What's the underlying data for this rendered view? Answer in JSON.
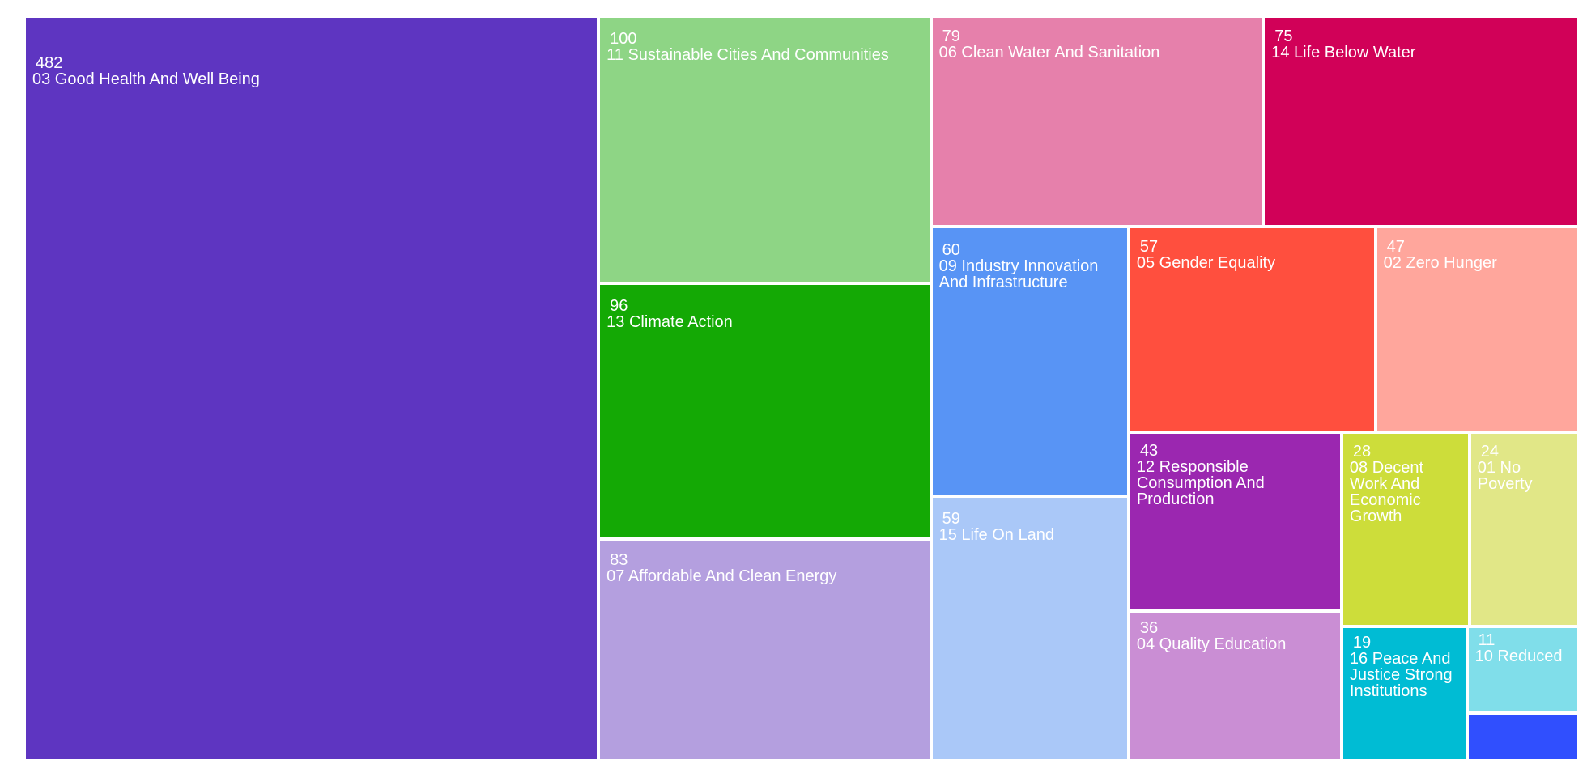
{
  "chart_data": {
    "type": "treemap",
    "categories": [
      "03 Good Health And Well Being",
      "11 Sustainable Cities And Communities",
      "13 Climate Action",
      "07 Affordable And Clean Energy",
      "06 Clean Water And Sanitation",
      "14 Life Below Water",
      "09 Industry Innovation And Infrastructure",
      "15 Life On Land",
      "05 Gender Equality",
      "02 Zero Hunger",
      "12 Responsible Consumption And Production",
      "04 Quality Education",
      "08 Decent Work And Economic Growth",
      "01 No Poverty",
      "16 Peace And Justice Strong Institutions",
      "10 Reduced",
      null
    ],
    "values": [
      482,
      100,
      96,
      83,
      79,
      75,
      60,
      59,
      57,
      47,
      43,
      36,
      28,
      24,
      19,
      11,
      6
    ],
    "colors": [
      "#5e35c1",
      "#8ed585",
      "#14a905",
      "#b49fdf",
      "#e680ab",
      "#d10158",
      "#5894f5",
      "#aac8f8",
      "#ff4f3e",
      "#ffa69c",
      "#9b27b0",
      "#ca8ed4",
      "#cddd3a",
      "#e1e787",
      "#00bcd4",
      "#80deea",
      "#304ffe"
    ]
  }
}
